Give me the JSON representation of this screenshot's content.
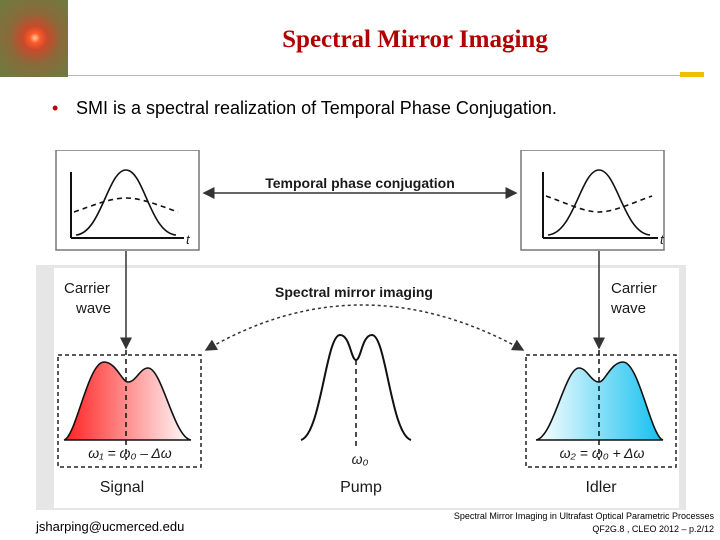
{
  "slide": {
    "title": "Spectral Mirror Imaging",
    "bullet": "SMI is a spectral realization of Temporal Phase Conjugation.",
    "footer_left": "jsharping@ucmerced.edu",
    "footer_right_line1": "Spectral Mirror Imaging in Ultrafast Optical Parametric Processes",
    "footer_right_line2": "QF2G.8 , CLEO 2012 – p.2/12"
  },
  "diagram": {
    "top_arrow_label": "Temporal phase conjugation",
    "mid_arrow_label": "Spectral mirror imaging",
    "t_axis": "t",
    "carrier_left_1": "Carrier",
    "carrier_left_2": "wave",
    "carrier_right_1": "Carrier",
    "carrier_right_2": "wave",
    "eq_signal": "ω₁ = ω₀ – Δω",
    "eq_pump": "ω₀",
    "eq_idler": "ω₂ = ω₀ + Δω",
    "signal_label": "Signal",
    "pump_label": "Pump",
    "idler_label": "Idler",
    "colors": {
      "signal": "#ff2a2a",
      "idler": "#22c8f0",
      "title": "#b00000"
    }
  }
}
